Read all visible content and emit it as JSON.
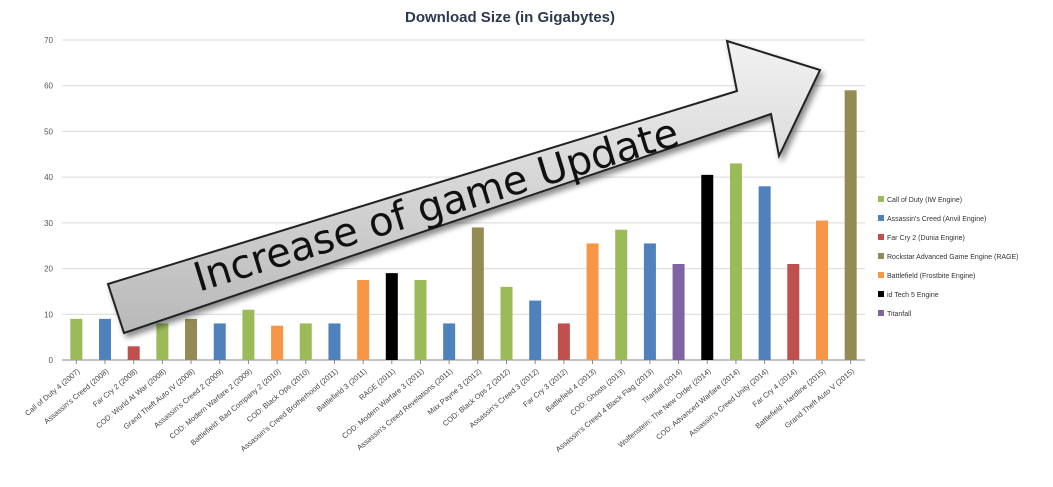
{
  "chart_data": {
    "type": "bar",
    "title": "Download Size (in Gigabytes)",
    "ylim": [
      0,
      70
    ],
    "yticks": [
      0,
      10,
      20,
      30,
      40,
      50,
      60,
      70
    ],
    "grid": true,
    "legend_position": "right",
    "legend": [
      {
        "label": "Call of Duty (IW Engine)",
        "color": "#9bbb59"
      },
      {
        "label": "Assassin's Creed (Anvil Engine)",
        "color": "#4f81bd"
      },
      {
        "label": "Far Cry 2 (Dunia Engine)",
        "color": "#c0504d"
      },
      {
        "label": "Rockstar Advanced Game Engine (RAGE)",
        "color": "#948a54"
      },
      {
        "label": "Battlefield (Frostbite Engine)",
        "color": "#f79646"
      },
      {
        "label": "id Tech 5 Engine",
        "color": "#000000"
      },
      {
        "label": "Titanfall",
        "color": "#8064a2"
      }
    ],
    "bars": [
      {
        "label": "Call of Duty 4 (2007)",
        "value": 9,
        "color": "#9bbb59"
      },
      {
        "label": "Assassin's Creed (2008)",
        "value": 9,
        "color": "#4f81bd"
      },
      {
        "label": "Far Cry 2 (2008)",
        "value": 3,
        "color": "#c0504d"
      },
      {
        "label": "COD: World At War (2008)",
        "value": 8,
        "color": "#9bbb59"
      },
      {
        "label": "Grand Theft Auto IV (2008)",
        "value": 9,
        "color": "#948a54"
      },
      {
        "label": "Assassin's Creed 2 (2009)",
        "value": 8,
        "color": "#4f81bd"
      },
      {
        "label": "COD: Modern Warfare 2 (2009)",
        "value": 11,
        "color": "#9bbb59"
      },
      {
        "label": "Battlefield: Bad Company 2 (2010)",
        "value": 7.5,
        "color": "#f79646"
      },
      {
        "label": "COD: Black Ops (2010)",
        "value": 8,
        "color": "#9bbb59"
      },
      {
        "label": "Assassin's Creed Brotherhood (2011)",
        "value": 8,
        "color": "#4f81bd"
      },
      {
        "label": "Battlefield 3 (2011)",
        "value": 17.5,
        "color": "#f79646"
      },
      {
        "label": "RAGE (2011)",
        "value": 19,
        "color": "#000000"
      },
      {
        "label": "COD: Modern Warfare 3 (2011)",
        "value": 17.5,
        "color": "#9bbb59"
      },
      {
        "label": "Assassin's Creed Revelations (2011)",
        "value": 8,
        "color": "#4f81bd"
      },
      {
        "label": "Max Payne 3 (2012)",
        "value": 29,
        "color": "#948a54"
      },
      {
        "label": "COD: Black Ops 2 (2012)",
        "value": 16,
        "color": "#9bbb59"
      },
      {
        "label": "Assassin's Creed 3 (2012)",
        "value": 13,
        "color": "#4f81bd"
      },
      {
        "label": "Far Cry 3 (2012)",
        "value": 8,
        "color": "#c0504d"
      },
      {
        "label": "Battlefield 4 (2013)",
        "value": 25.5,
        "color": "#f79646"
      },
      {
        "label": "COD: Ghosts (2013)",
        "value": 28.5,
        "color": "#9bbb59"
      },
      {
        "label": "Assassin's Creed 4 Black Flag (2013)",
        "value": 25.5,
        "color": "#4f81bd"
      },
      {
        "label": "Titanfall (2014)",
        "value": 21,
        "color": "#8064a2"
      },
      {
        "label": "Wolfenstein: The New Order (2014)",
        "value": 40.5,
        "color": "#000000"
      },
      {
        "label": "COD: Advanced Warfare (2014)",
        "value": 43,
        "color": "#9bbb59"
      },
      {
        "label": "Assassin's Creed Unity (2014)",
        "value": 38,
        "color": "#4f81bd"
      },
      {
        "label": "Far Cry 4 (2014)",
        "value": 21,
        "color": "#c0504d"
      },
      {
        "label": "Battlefield: Hardline (2015)",
        "value": 30.5,
        "color": "#f79646"
      },
      {
        "label": "Grand Theft Auto V (2015)",
        "value": 59,
        "color": "#948a54"
      }
    ]
  },
  "overlay": {
    "arrow_text": "Increase of game Update"
  }
}
